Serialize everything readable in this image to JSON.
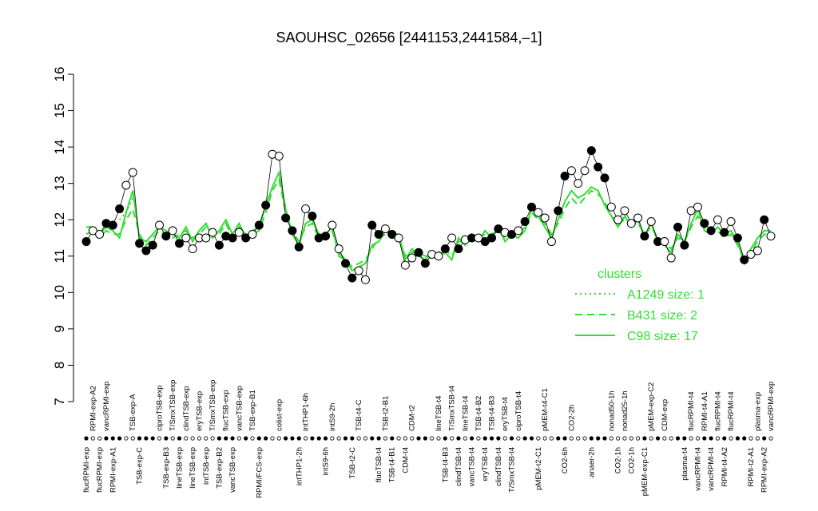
{
  "chart_data": {
    "type": "line",
    "title": "SAOUHSC_02656 [2441153,2441584,–1]",
    "categories": [
      "flucRPMI-exp",
      "RPMI-exp-A2",
      "flucRPMI-exp",
      "vancRPMI-exp",
      "RPMI-exp-A1",
      null,
      null,
      "TSB-exp-A",
      "TSB-exp-C",
      null,
      null,
      "ciproTSB-exp",
      "TSB-exp-B3",
      "T/SmxTSB-exp",
      "lineTSB-exp",
      "clindTSB-exp",
      "lineTSB-exp",
      "eryTSB-exp",
      "intTSB-exp",
      "T/SmxTSB-exp",
      "TSB-exp-B2",
      "flucTSB-exp",
      "vancTSB-exp",
      "vancTSB-exp",
      null,
      "TSB-exp-B1",
      "RPMI/FCS-exp",
      null,
      null,
      "colist-exp",
      null,
      null,
      "intTHP1-2h",
      "intTHP1-6h",
      null,
      null,
      "intS9-6h",
      "intS9-2h",
      null,
      null,
      "TSB-t2-C",
      "TSB-t4-C",
      null,
      null,
      "flucTSB-t4",
      "TSB-t2-B1",
      "TSB-t4-B1",
      null,
      "CDM-t4",
      "CDM-t2",
      null,
      null,
      null,
      "lineTSB-t4",
      "TSB-t4-B3",
      "T/SmxTSB-t4",
      "clindTSB-t4",
      "lineTSB-t4",
      "vancTSB-t4",
      "TSB-t4-B2",
      "eryTSB-t4",
      "TSB-t4-B3",
      "clindTSB-t4",
      "eryTSB-t4",
      "T/SmxTSB-t4",
      "ciproTSB-t4",
      null,
      null,
      "pMEM-t2-C1",
      "pMEM-t4-C1",
      null,
      null,
      "CO2-6h",
      "CO2-2h",
      null,
      null,
      "anaer-2h",
      null,
      null,
      "nonad50-1h",
      "CO2-1h",
      "nonad25-1h",
      "CO2-1h",
      null,
      "pMEM-exp-C1",
      "pMEM-exp-C2",
      null,
      "CDM-exp",
      null,
      null,
      "plasma-t4",
      "flucRPMI-t4",
      "vancRPMI-t4",
      "RPMI-t4-A1",
      "vancRPMI-t4",
      "flucRPMI-t4",
      "RPMI-t4-A2",
      "flucRPMI-t4",
      null,
      null,
      "RPMI-t2-A1",
      "plasma-exp",
      "RPMI-exp-A2",
      "vancRPMI-exp"
    ],
    "values": [
      11.4,
      11.7,
      11.6,
      11.9,
      11.85,
      12.3,
      12.95,
      13.3,
      11.35,
      11.15,
      11.3,
      11.85,
      11.55,
      11.7,
      11.35,
      11.5,
      11.2,
      11.5,
      11.5,
      11.65,
      11.3,
      11.55,
      11.5,
      11.65,
      11.5,
      11.6,
      11.85,
      12.4,
      13.8,
      13.75,
      12.05,
      11.7,
      11.25,
      12.3,
      12.1,
      11.5,
      11.55,
      11.85,
      11.2,
      10.8,
      10.4,
      10.6,
      10.35,
      11.85,
      11.6,
      11.75,
      11.6,
      11.5,
      10.75,
      10.95,
      11.1,
      10.8,
      11.05,
      11.0,
      11.2,
      11.5,
      11.2,
      11.45,
      11.5,
      11.5,
      11.4,
      11.5,
      11.75,
      11.65,
      11.6,
      11.7,
      11.95,
      12.35,
      12.2,
      12.05,
      11.4,
      12.25,
      13.2,
      13.35,
      13.0,
      13.35,
      13.9,
      13.45,
      13.15,
      12.35,
      12.0,
      12.25,
      11.9,
      12.05,
      11.55,
      11.95,
      11.4,
      11.4,
      10.95,
      11.8,
      11.3,
      12.25,
      12.35,
      11.9,
      11.7,
      12.0,
      11.65,
      11.95,
      11.5,
      10.9,
      11.05,
      11.15,
      12.0,
      11.55
    ],
    "colors": [
      "#000",
      "#fff",
      "#fff",
      "#000",
      "#000",
      "#000",
      "#fff",
      "#fff",
      "#000",
      "#000",
      "#000",
      "#fff",
      "#000",
      "#fff",
      "#000",
      "#fff",
      "#fff",
      "#fff",
      "#fff",
      "#fff",
      "#000",
      "#000",
      "#000",
      "#fff",
      "#000",
      "#fff",
      "#000",
      "#000",
      "#fff",
      "#fff",
      "#000",
      "#000",
      "#000",
      "#fff",
      "#000",
      "#000",
      "#000",
      "#fff",
      "#fff",
      "#000",
      "#000",
      "#fff",
      "#fff",
      "#000",
      "#000",
      "#fff",
      "#000",
      "#fff",
      "#fff",
      "#fff",
      "#000",
      "#000",
      "#fff",
      "#fff",
      "#000",
      "#fff",
      "#000",
      "#fff",
      "#000",
      "#fff",
      "#000",
      "#000",
      "#000",
      "#fff",
      "#000",
      "#fff",
      "#000",
      "#000",
      "#fff",
      "#fff",
      "#fff",
      "#000",
      "#000",
      "#fff",
      "#fff",
      "#fff",
      "#000",
      "#000",
      "#000",
      "#fff",
      "#fff",
      "#fff",
      "#fff",
      "#fff",
      "#000",
      "#fff",
      "#000",
      "#fff",
      "#fff",
      "#000",
      "#000",
      "#fff",
      "#fff",
      "#000",
      "#000",
      "#fff",
      "#000",
      "#fff",
      "#000",
      "#000",
      "#fff",
      "#fff",
      "#000",
      "#fff"
    ],
    "series": [
      {
        "name": "A1249 size: 1",
        "color": "#33dd33",
        "line_style": "dotted",
        "values": [
          null,
          null,
          null,
          null,
          null,
          12.0,
          12.2,
          12.6,
          null,
          null,
          null,
          null,
          null,
          null,
          null,
          null,
          null,
          null,
          null,
          null,
          null,
          null,
          null,
          null,
          null,
          null,
          null,
          null,
          null,
          null,
          null,
          null,
          null,
          null,
          null,
          null,
          null,
          null,
          null,
          null,
          null,
          null,
          null,
          null,
          null,
          null,
          null,
          null,
          null,
          null,
          null,
          null,
          null,
          null,
          null,
          null,
          null,
          null,
          null,
          null,
          null,
          null,
          null,
          null,
          null,
          null,
          null,
          null,
          null,
          null,
          null,
          null,
          null,
          null,
          null,
          null,
          null,
          null,
          null,
          null,
          null,
          null,
          null,
          null,
          null,
          null,
          null,
          null,
          null,
          null,
          null,
          null,
          null,
          null,
          null,
          null,
          null,
          null,
          null,
          null,
          null,
          null,
          null,
          null
        ]
      },
      {
        "name": "B431 size: 2",
        "color": "#33dd33",
        "line_style": "dashed",
        "values": [
          11.6,
          11.7,
          11.5,
          11.7,
          11.6,
          11.6,
          12.0,
          12.3,
          11.6,
          11.3,
          11.5,
          11.7,
          11.6,
          11.5,
          11.6,
          11.7,
          11.5,
          11.6,
          11.8,
          11.6,
          11.6,
          11.9,
          11.5,
          11.8,
          11.6,
          11.6,
          11.7,
          12.2,
          12.8,
          13.1,
          12.2,
          11.7,
          11.4,
          11.8,
          11.9,
          11.5,
          11.6,
          11.7,
          11.1,
          10.9,
          10.7,
          10.8,
          10.9,
          11.2,
          11.5,
          11.6,
          11.5,
          11.5,
          11.0,
          11.1,
          11.1,
          11.0,
          11.0,
          11.1,
          11.2,
          11.0,
          11.4,
          11.4,
          11.5,
          11.5,
          11.6,
          11.6,
          11.7,
          11.5,
          11.5,
          11.6,
          11.8,
          12.2,
          12.0,
          11.9,
          11.6,
          11.9,
          12.3,
          12.6,
          12.4,
          12.6,
          12.8,
          12.7,
          12.5,
          12.1,
          11.9,
          12.0,
          11.9,
          11.9,
          11.6,
          11.8,
          11.5,
          11.4,
          11.2,
          11.5,
          11.4,
          11.8,
          12.1,
          11.8,
          11.6,
          11.7,
          11.5,
          11.6,
          11.3,
          10.9,
          11.1,
          11.4,
          11.6,
          11.6
        ]
      },
      {
        "name": "C98 size: 17",
        "color": "#33dd33",
        "line_style": "solid",
        "values": [
          11.8,
          11.8,
          11.6,
          11.8,
          11.7,
          11.5,
          12.2,
          12.8,
          11.5,
          11.4,
          11.6,
          11.8,
          11.7,
          11.6,
          11.5,
          11.8,
          11.4,
          11.7,
          11.9,
          11.5,
          11.7,
          12.0,
          11.6,
          11.9,
          11.5,
          11.7,
          11.8,
          12.4,
          12.9,
          13.3,
          12.3,
          11.6,
          11.3,
          11.9,
          12.0,
          11.6,
          11.6,
          11.8,
          11.0,
          10.9,
          10.6,
          10.7,
          10.8,
          11.3,
          11.4,
          11.7,
          11.6,
          11.6,
          10.9,
          11.2,
          11.0,
          10.9,
          11.1,
          11.0,
          11.1,
          10.9,
          11.5,
          11.3,
          11.6,
          11.4,
          11.7,
          11.5,
          11.8,
          11.4,
          11.6,
          11.5,
          11.7,
          12.3,
          12.1,
          11.8,
          11.5,
          12.0,
          12.5,
          12.8,
          12.6,
          12.7,
          12.9,
          12.8,
          12.4,
          12.1,
          11.8,
          12.1,
          11.8,
          12.0,
          11.5,
          11.9,
          11.4,
          11.3,
          11.1,
          11.6,
          11.4,
          11.9,
          12.3,
          11.7,
          11.6,
          11.8,
          11.6,
          11.7,
          11.4,
          10.8,
          11.2,
          11.5,
          11.7,
          11.7
        ]
      }
    ],
    "legend_title": "clusters",
    "ylim": [
      7,
      16
    ],
    "yticks": [
      7,
      8,
      9,
      10,
      11,
      12,
      13,
      14,
      15,
      16
    ]
  }
}
